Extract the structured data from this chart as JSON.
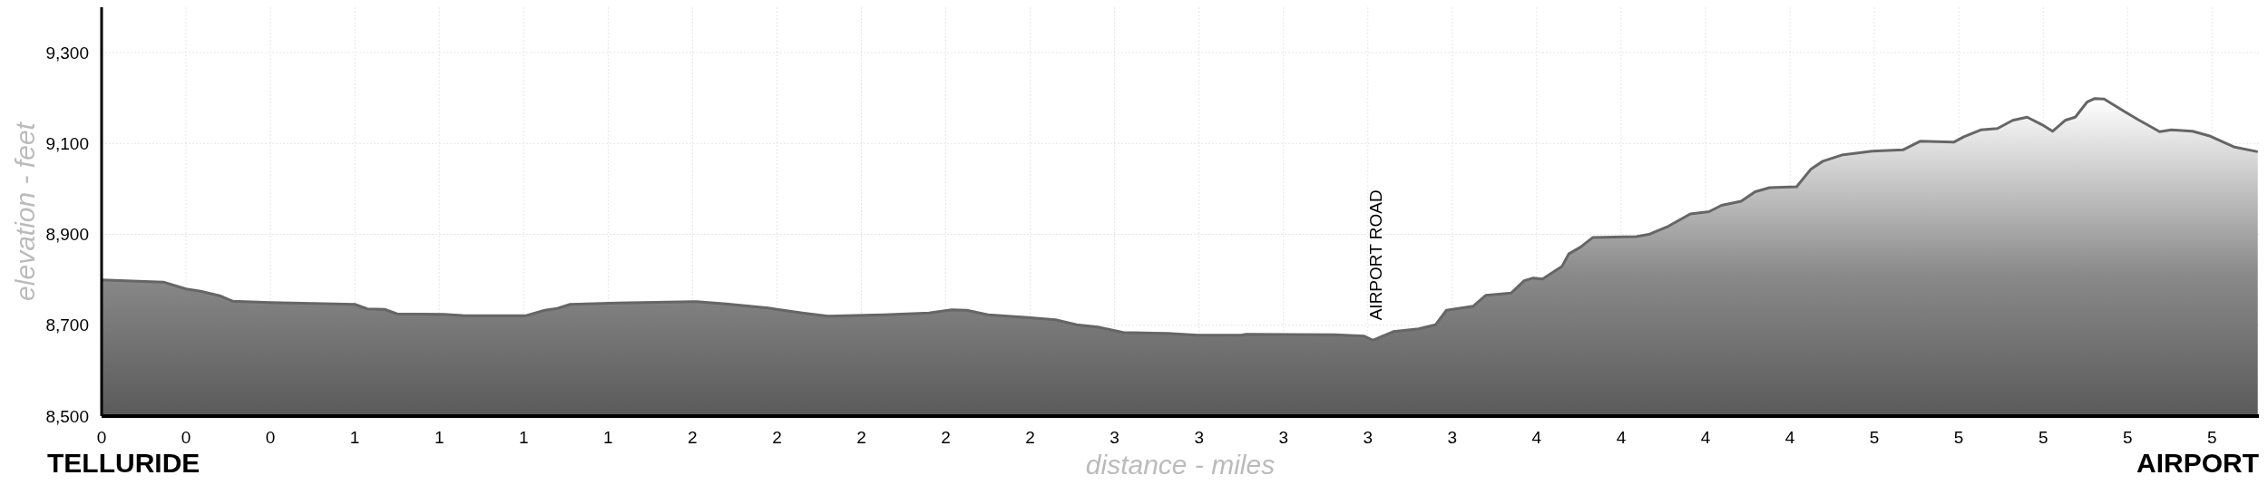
{
  "chart_data": {
    "type": "area",
    "xlabel": "distance - miles",
    "ylabel": "elevation - feet",
    "xlim": [
      0,
      5.52
    ],
    "ylim": [
      8500,
      9400
    ],
    "xticks": [
      {
        "value": 0,
        "label": "0"
      },
      {
        "value": 0.216,
        "label": "0"
      },
      {
        "value": 0.432,
        "label": "0"
      },
      {
        "value": 0.648,
        "label": "1"
      },
      {
        "value": 0.864,
        "label": "1"
      },
      {
        "value": 1.08,
        "label": "1"
      },
      {
        "value": 1.296,
        "label": "1"
      },
      {
        "value": 1.512,
        "label": "2"
      },
      {
        "value": 1.728,
        "label": "2"
      },
      {
        "value": 1.944,
        "label": "2"
      },
      {
        "value": 2.16,
        "label": "2"
      },
      {
        "value": 2.376,
        "label": "2"
      },
      {
        "value": 2.592,
        "label": "3"
      },
      {
        "value": 2.808,
        "label": "3"
      },
      {
        "value": 3.024,
        "label": "3"
      },
      {
        "value": 3.24,
        "label": "3"
      },
      {
        "value": 3.456,
        "label": "3"
      },
      {
        "value": 3.672,
        "label": "4"
      },
      {
        "value": 3.888,
        "label": "4"
      },
      {
        "value": 4.104,
        "label": "4"
      },
      {
        "value": 4.32,
        "label": "4"
      },
      {
        "value": 4.536,
        "label": "5"
      },
      {
        "value": 4.752,
        "label": "5"
      },
      {
        "value": 4.968,
        "label": "5"
      },
      {
        "value": 5.184,
        "label": "5"
      },
      {
        "value": 5.4,
        "label": "5"
      }
    ],
    "yticks": [
      {
        "value": 8500,
        "label": "8,500"
      },
      {
        "value": 8700,
        "label": "8,700"
      },
      {
        "value": 8900,
        "label": "8,900"
      },
      {
        "value": 9100,
        "label": "9,100"
      },
      {
        "value": 9300,
        "label": "9,300"
      }
    ],
    "grid": true,
    "series": [
      {
        "color": "#666666",
        "x": [
          0,
          0.158,
          0.216,
          0.253,
          0.302,
          0.335,
          0.432,
          0.648,
          0.68,
          0.724,
          0.756,
          0.875,
          0.929,
          1.086,
          1.134,
          1.166,
          1.199,
          1.318,
          1.523,
          1.598,
          1.706,
          1.728,
          1.793,
          1.858,
          2.002,
          2.117,
          2.175,
          2.214,
          2.268,
          2.37,
          2.441,
          2.495,
          2.549,
          2.614,
          2.728,
          2.804,
          2.916,
          2.929,
          3.154,
          3.231,
          3.253,
          3.305,
          3.37,
          3.413,
          3.441,
          3.51,
          3.542,
          3.607,
          3.64,
          3.663,
          3.687,
          3.737,
          3.754,
          3.784,
          3.815,
          3.927,
          3.959,
          4.009,
          4.065,
          4.113,
          4.145,
          4.195,
          4.231,
          4.268,
          4.337,
          4.374,
          4.404,
          4.454,
          4.53,
          4.609,
          4.653,
          4.739,
          4.765,
          4.808,
          4.851,
          4.89,
          4.927,
          4.964,
          4.992,
          5.024,
          5.05,
          5.08,
          5.1,
          5.124,
          5.173,
          5.21,
          5.266,
          5.296,
          5.35,
          5.396,
          5.458,
          5.517
        ],
        "values": [
          8800,
          8795,
          8780,
          8775,
          8765,
          8753,
          8750,
          8746,
          8736,
          8735,
          8725,
          8724,
          8721,
          8721,
          8733,
          8737,
          8746,
          8749,
          8752,
          8747,
          8738,
          8735,
          8727,
          8720,
          8723,
          8727,
          8734,
          8733,
          8723,
          8717,
          8712,
          8701,
          8696,
          8684,
          8682,
          8678,
          8678,
          8680,
          8679,
          8676,
          8667,
          8686,
          8692,
          8701,
          8733,
          8742,
          8766,
          8771,
          8798,
          8804,
          8802,
          8830,
          8857,
          8872,
          8893,
          8895,
          8900,
          8918,
          8945,
          8950,
          8964,
          8973,
          8994,
          9003,
          9005,
          9044,
          9061,
          9075,
          9083,
          9086,
          9105,
          9103,
          9115,
          9130,
          9133,
          9151,
          9158,
          9142,
          9127,
          9151,
          9158,
          9191,
          9199,
          9198,
          9172,
          9153,
          9126,
          9130,
          9127,
          9116,
          9092,
          9082
        ]
      }
    ],
    "annotations": [
      {
        "text": "AIRPORT ROAD",
        "x": 3.26,
        "y": 8667
      },
      "TELLURIDE",
      "AIRPORT"
    ]
  }
}
